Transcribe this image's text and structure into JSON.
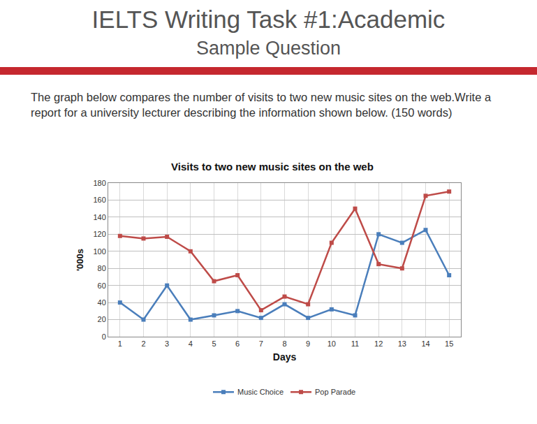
{
  "header": {
    "title": "IELTS Writing Task #1:Academic",
    "subtitle": "Sample Question"
  },
  "prompt": "The graph below compares the number of visits to two new music sites on the web.Write a report for a university lecturer describing the information shown below. (150 words)",
  "chart_data": {
    "type": "line",
    "title": "Visits to two new music sites on the web",
    "x_label": "Days",
    "y_label": "'000s",
    "x": [
      1,
      2,
      3,
      4,
      5,
      6,
      7,
      8,
      9,
      10,
      11,
      12,
      13,
      14,
      15
    ],
    "series": [
      {
        "name": "Music Choice",
        "color": "#4a7ebb",
        "marker": "square",
        "line_style": "solid",
        "values": [
          40,
          20,
          60,
          20,
          25,
          30,
          22,
          38,
          22,
          32,
          25,
          120,
          110,
          125,
          72
        ]
      },
      {
        "name": "Pop Parade",
        "color": "#be4b48",
        "marker": "square",
        "line_style": "solid",
        "values": [
          118,
          115,
          117,
          100,
          65,
          72,
          31,
          47,
          38,
          110,
          150,
          85,
          80,
          165,
          170
        ]
      }
    ],
    "xlim": [
      0.5,
      15.5
    ],
    "xticks": [
      1,
      2,
      3,
      4,
      5,
      6,
      7,
      8,
      9,
      10,
      11,
      12,
      13,
      14,
      15
    ],
    "ylim": [
      0,
      180
    ],
    "yticks": [
      0,
      20,
      40,
      60,
      80,
      100,
      120,
      140,
      160,
      180
    ],
    "grid": true,
    "legend": "bottom"
  }
}
